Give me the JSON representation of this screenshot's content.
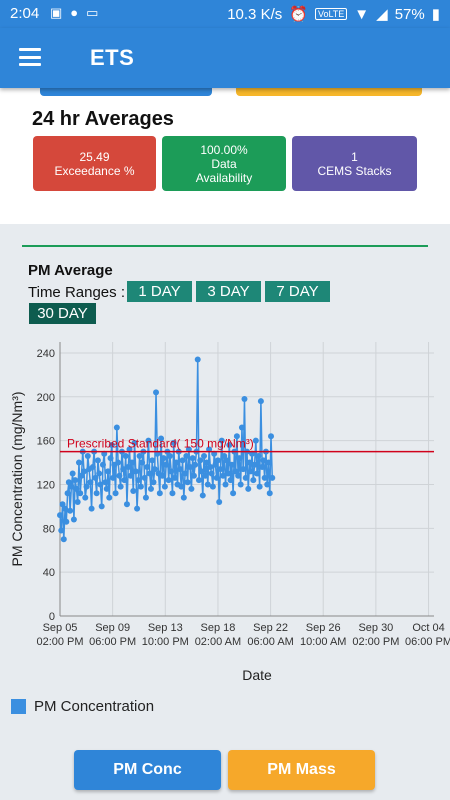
{
  "status_bar": {
    "time": "2:04",
    "speed": "10.3 K/s",
    "volte": "VoLTE",
    "battery": "57%"
  },
  "app_bar": {
    "title": "ETS"
  },
  "averages": {
    "title": "24 hr Averages",
    "cards": [
      {
        "line1": "25.49",
        "line2": "Exceedance %",
        "line3": ""
      },
      {
        "line1": "100.00%",
        "line2": "Data",
        "line3": "Availability"
      },
      {
        "line1": "1",
        "line2": "CEMS Stacks",
        "line3": ""
      }
    ]
  },
  "pm_section": {
    "title": "PM Average",
    "time_ranges_label": "Time Ranges :",
    "ranges": [
      "1 DAY",
      "3 DAY",
      "7 DAY",
      "30 DAY"
    ],
    "active_range": "30 DAY"
  },
  "chart_data": {
    "type": "line",
    "xlabel": "Date",
    "ylabel": "PM Concentration (mg/Nm³)",
    "ylim": [
      0,
      250
    ],
    "yticks": [
      0,
      40,
      80,
      120,
      160,
      200,
      240
    ],
    "x_range_days": [
      0,
      29.6
    ],
    "xticks": [
      {
        "day": 0,
        "line1": "Sep 05",
        "line2": "02:00 PM"
      },
      {
        "day": 4.1667,
        "line1": "Sep 09",
        "line2": "06:00 PM"
      },
      {
        "day": 8.3333,
        "line1": "Sep 13",
        "line2": "10:00 PM"
      },
      {
        "day": 12.5,
        "line1": "Sep 18",
        "line2": "02:00 AM"
      },
      {
        "day": 16.6667,
        "line1": "Sep 22",
        "line2": "06:00 AM"
      },
      {
        "day": 20.8333,
        "line1": "Sep 26",
        "line2": "10:00 AM"
      },
      {
        "day": 25.0,
        "line1": "Sep 30",
        "line2": "02:00 PM"
      },
      {
        "day": 29.1667,
        "line1": "Oct 04",
        "line2": "06:00 PM"
      }
    ],
    "threshold": {
      "value": 150,
      "label": "Prescribed Standard( 150 mg/Nm³)",
      "color": "#d0021b"
    },
    "series": [
      {
        "name": "PM Concentration",
        "color": "#3b8fe0",
        "x": [
          0.0,
          0.1,
          0.2,
          0.3,
          0.4,
          0.5,
          0.6,
          0.7,
          0.8,
          0.9,
          1.0,
          1.1,
          1.2,
          1.3,
          1.4,
          1.5,
          1.6,
          1.7,
          1.8,
          1.9,
          2.0,
          2.1,
          2.2,
          2.3,
          2.4,
          2.5,
          2.6,
          2.7,
          2.8,
          2.9,
          3.0,
          3.1,
          3.2,
          3.3,
          3.4,
          3.5,
          3.6,
          3.7,
          3.8,
          3.9,
          4.0,
          4.1,
          4.2,
          4.3,
          4.4,
          4.5,
          4.6,
          4.7,
          4.8,
          4.9,
          5.0,
          5.1,
          5.2,
          5.3,
          5.4,
          5.5,
          5.6,
          5.7,
          5.8,
          5.9,
          6.0,
          6.1,
          6.2,
          6.3,
          6.4,
          6.5,
          6.6,
          6.7,
          6.8,
          6.9,
          7.0,
          7.1,
          7.2,
          7.3,
          7.4,
          7.5,
          7.6,
          7.7,
          7.8,
          7.9,
          8.0,
          8.1,
          8.2,
          8.3,
          8.4,
          8.5,
          8.6,
          8.7,
          8.8,
          8.9,
          9.0,
          9.1,
          9.2,
          9.3,
          9.4,
          9.5,
          9.6,
          9.7,
          9.8,
          9.9,
          10.0,
          10.1,
          10.2,
          10.3,
          10.4,
          10.5,
          10.6,
          10.7,
          10.8,
          10.9,
          11.0,
          11.1,
          11.2,
          11.3,
          11.4,
          11.5,
          11.6,
          11.7,
          11.8,
          11.9,
          12.0,
          12.1,
          12.2,
          12.3,
          12.4,
          12.5,
          12.6,
          12.7,
          12.8,
          12.9,
          13.0,
          13.1,
          13.2,
          13.3,
          13.4,
          13.5,
          13.6,
          13.7,
          13.8,
          13.9,
          14.0,
          14.1,
          14.2,
          14.3,
          14.4,
          14.5,
          14.6,
          14.7,
          14.8,
          14.9,
          15.0,
          15.1,
          15.2,
          15.3,
          15.4,
          15.5,
          15.6,
          15.7,
          15.8,
          15.9,
          16.0,
          16.1,
          16.2,
          16.3,
          16.4,
          16.5,
          16.6,
          16.7,
          16.8
        ],
        "y": [
          92,
          78,
          102,
          70,
          98,
          86,
          112,
          122,
          96,
          118,
          130,
          88,
          124,
          116,
          104,
          140,
          112,
          128,
          150,
          132,
          108,
          118,
          146,
          134,
          122,
          98,
          136,
          150,
          126,
          112,
          142,
          130,
          120,
          100,
          138,
          148,
          122,
          116,
          132,
          108,
          144,
          156,
          126,
          138,
          112,
          172,
          140,
          128,
          118,
          150,
          134,
          124,
          146,
          102,
          136,
          152,
          128,
          140,
          114,
          158,
          132,
          98,
          124,
          146,
          118,
          140,
          150,
          126,
          108,
          136,
          160,
          130,
          116,
          142,
          122,
          134,
          204,
          148,
          130,
          112,
          162,
          128,
          144,
          118,
          138,
          150,
          124,
          146,
          132,
          112,
          158,
          126,
          140,
          120,
          150,
          134,
          118,
          142,
          108,
          130,
          146,
          122,
          152,
          136,
          116,
          144,
          128,
          138,
          150,
          234,
          124,
          142,
          132,
          110,
          146,
          128,
          140,
          120,
          152,
          136,
          130,
          118,
          148,
          138,
          126,
          142,
          104,
          134,
          160,
          128,
          146,
          120,
          142,
          130,
          156,
          124,
          138,
          112,
          150,
          132,
          164,
          128,
          144,
          120,
          172,
          134,
          198,
          126,
          150,
          116,
          140,
          132,
          148,
          124,
          138,
          160,
          130,
          146,
          118,
          196,
          136,
          142,
          126,
          150,
          120,
          140,
          112,
          164,
          126
        ]
      }
    ],
    "legend": {
      "entry": "PM Concentration",
      "position": "bottom-left"
    }
  },
  "bottom_buttons": {
    "conc": "PM Conc",
    "mass": "PM Mass"
  }
}
